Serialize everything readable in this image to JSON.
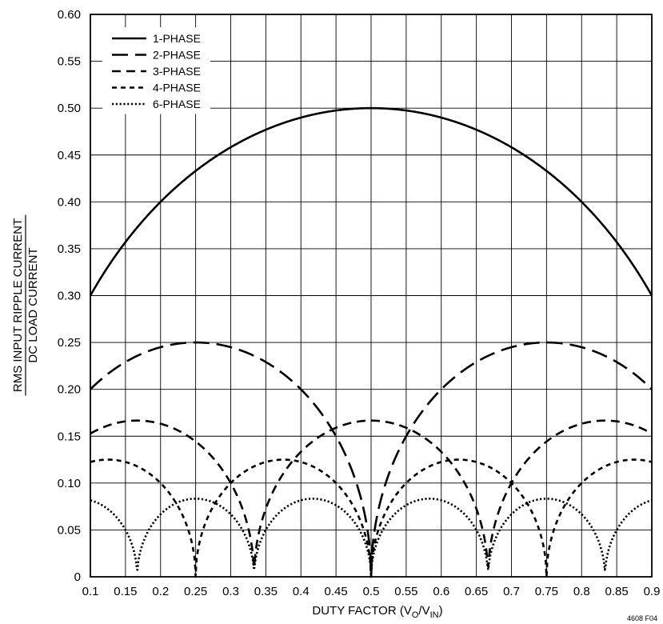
{
  "chart_data": {
    "type": "line",
    "xlabel_parts": [
      "DUTY FACTOR (V",
      "O",
      "/V",
      "IN",
      ")"
    ],
    "ylabel_numerator": "RMS INPUT RIPPLE CURRENT",
    "ylabel_denominator": "DC LOAD CURRENT",
    "figure_id": "4608 F04",
    "xlim": [
      0.1,
      0.9
    ],
    "ylim": [
      0,
      0.6
    ],
    "x_ticks": [
      "0.1",
      "0.15",
      "0.2",
      "0.25",
      "0.3",
      "0.35",
      "0.4",
      "0.45",
      "0.5",
      "0.55",
      "0.6",
      "0.65",
      "0.7",
      "0.75",
      "0.8",
      "0.85",
      "0.9"
    ],
    "y_ticks": [
      "0",
      "0.05",
      "0.10",
      "0.15",
      "0.20",
      "0.25",
      "0.30",
      "0.35",
      "0.40",
      "0.45",
      "0.50",
      "0.55",
      "0.60"
    ],
    "grid": true,
    "legend_position": "top-left",
    "series": [
      {
        "name": "1-PHASE",
        "style": "solid",
        "x": [
          0.1,
          0.15,
          0.2,
          0.25,
          0.3,
          0.35,
          0.4,
          0.45,
          0.5,
          0.55,
          0.6,
          0.65,
          0.7,
          0.75,
          0.8,
          0.85,
          0.9
        ],
        "y": [
          0.3,
          0.357,
          0.4,
          0.433,
          0.458,
          0.477,
          0.49,
          0.497,
          0.5,
          0.497,
          0.49,
          0.477,
          0.458,
          0.433,
          0.4,
          0.357,
          0.3
        ]
      },
      {
        "name": "2-PHASE",
        "style": "long-dash",
        "x": [
          0.1,
          0.15,
          0.2,
          0.25,
          0.3,
          0.35,
          0.4,
          0.45,
          0.5,
          0.55,
          0.6,
          0.65,
          0.7,
          0.75,
          0.8,
          0.85,
          0.9
        ],
        "y": [
          0.2,
          0.229,
          0.245,
          0.25,
          0.245,
          0.229,
          0.2,
          0.15,
          0.0,
          0.15,
          0.2,
          0.229,
          0.245,
          0.25,
          0.245,
          0.229,
          0.2
        ]
      },
      {
        "name": "3-PHASE",
        "style": "medium-dash",
        "x": [
          0.1,
          0.15,
          0.1667,
          0.2,
          0.25,
          0.3,
          0.3333,
          0.35,
          0.4,
          0.45,
          0.5,
          0.55,
          0.6,
          0.65,
          0.6667,
          0.7,
          0.75,
          0.8,
          0.8333,
          0.85,
          0.9
        ],
        "y": [
          0.153,
          0.165,
          0.167,
          0.163,
          0.144,
          0.096,
          0.0,
          0.082,
          0.144,
          0.163,
          0.167,
          0.163,
          0.144,
          0.082,
          0.0,
          0.096,
          0.144,
          0.163,
          0.167,
          0.165,
          0.153
        ]
      },
      {
        "name": "4-PHASE",
        "style": "short-dash",
        "x": [
          0.1,
          0.125,
          0.15,
          0.2,
          0.25,
          0.3,
          0.35,
          0.375,
          0.4,
          0.45,
          0.5,
          0.55,
          0.6,
          0.625,
          0.65,
          0.7,
          0.75,
          0.8,
          0.85,
          0.875,
          0.9
        ],
        "y": [
          0.122,
          0.125,
          0.122,
          0.097,
          0.0,
          0.097,
          0.122,
          0.125,
          0.122,
          0.097,
          0.0,
          0.097,
          0.122,
          0.125,
          0.122,
          0.097,
          0.0,
          0.097,
          0.122,
          0.125,
          0.122
        ]
      },
      {
        "name": "6-PHASE",
        "style": "dotted",
        "x": [
          0.1,
          0.1333,
          0.1667,
          0.2,
          0.25,
          0.3,
          0.3333,
          0.3667,
          0.4167,
          0.45,
          0.5,
          0.55,
          0.5833,
          0.6333,
          0.6667,
          0.7,
          0.75,
          0.8,
          0.8333,
          0.8667,
          0.9
        ],
        "y": [
          0.08,
          0.067,
          0.0,
          0.067,
          0.083,
          0.067,
          0.0,
          0.067,
          0.083,
          0.067,
          0.0,
          0.067,
          0.083,
          0.067,
          0.0,
          0.067,
          0.083,
          0.067,
          0.0,
          0.067,
          0.08
        ]
      }
    ]
  }
}
